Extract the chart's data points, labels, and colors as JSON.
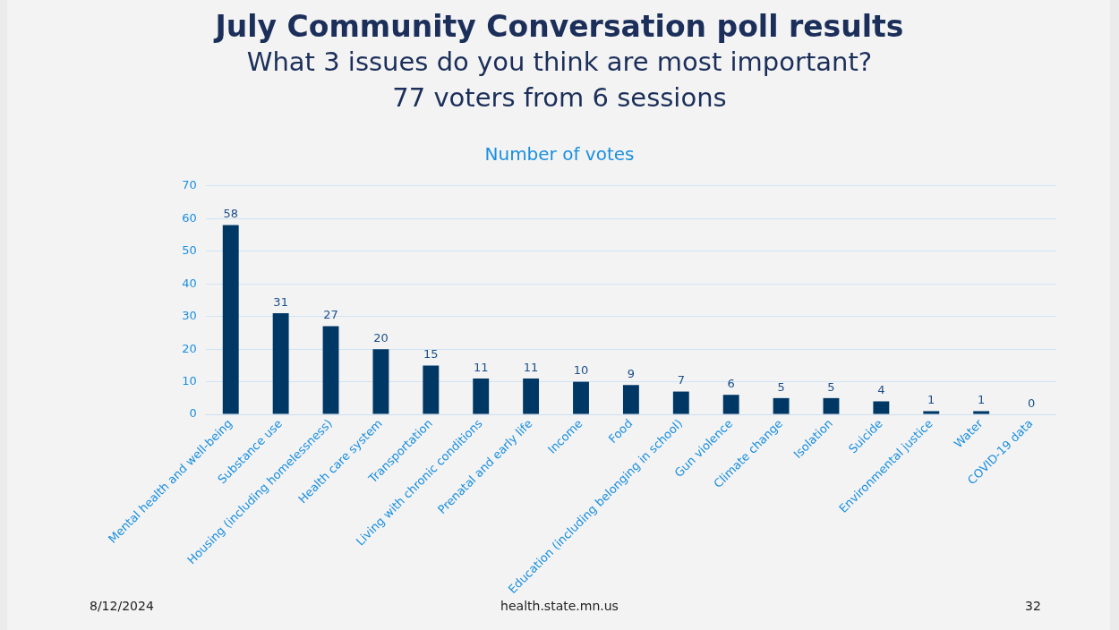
{
  "chart_data": {
    "type": "bar",
    "title": "July Community Conversation poll results",
    "subtitle": "What 3 issues do you think are most important?",
    "annotations": [
      "77 voters from 6 sessions",
      "Number of votes",
      "8/12/2024",
      "health.state.mn.us",
      "32"
    ],
    "categories": [
      "Mental health and well-being",
      "Substance use",
      "Housing (including homelessness)",
      "Health care system",
      "Transportation",
      "Living with chronic conditions",
      "Prenatal and early life",
      "Income",
      "Food",
      "Education (including belonging in school)",
      "Gun violence",
      "Climate change",
      "Isolation",
      "Suicide",
      "Environmental justice",
      "Water",
      "COVID-19 data"
    ],
    "values": [
      58,
      31,
      27,
      20,
      15,
      11,
      11,
      10,
      9,
      7,
      6,
      5,
      5,
      4,
      1,
      1,
      0
    ],
    "color": "#003865",
    "ylim": [
      0,
      70
    ],
    "yticks": [
      0,
      10,
      20,
      30,
      40,
      50,
      60,
      70
    ],
    "grid": "y",
    "data_labels": true
  }
}
